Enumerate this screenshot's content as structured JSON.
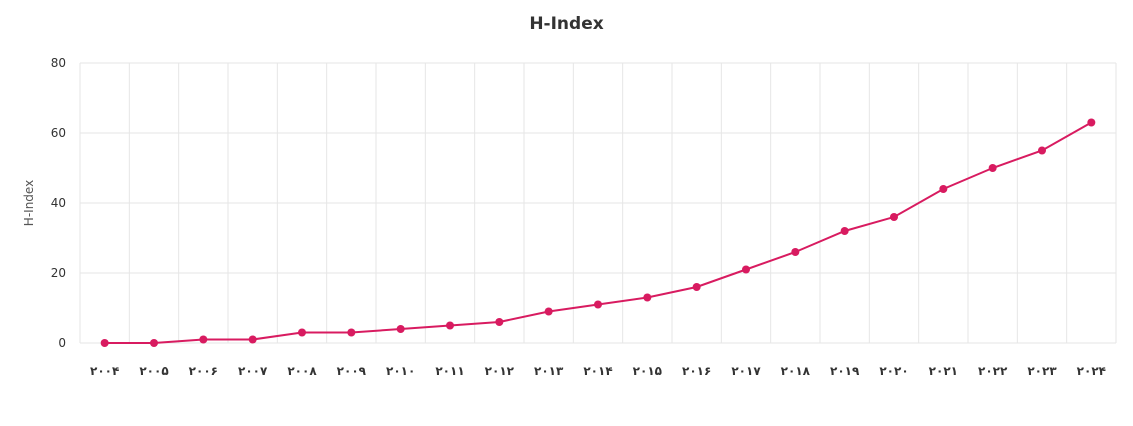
{
  "chart_data": {
    "type": "line",
    "title": "H-Index",
    "xlabel": "",
    "ylabel": "H-Index",
    "categories": [
      "۲۰۰۴",
      "۲۰۰۵",
      "۲۰۰۶",
      "۲۰۰۷",
      "۲۰۰۸",
      "۲۰۰۹",
      "۲۰۱۰",
      "۲۰۱۱",
      "۲۰۱۲",
      "۲۰۱۳",
      "۲۰۱۴",
      "۲۰۱۵",
      "۲۰۱۶",
      "۲۰۱۷",
      "۲۰۱۸",
      "۲۰۱۹",
      "۲۰۲۰",
      "۲۰۲۱",
      "۲۰۲۲",
      "۲۰۲۳",
      "۲۰۲۴"
    ],
    "series": [
      {
        "values": [
          0,
          0,
          1,
          1,
          3,
          3,
          4,
          5,
          6,
          9,
          11,
          13,
          16,
          21,
          26,
          32,
          36,
          44,
          50,
          55,
          63
        ]
      }
    ],
    "ylim": [
      0,
      80
    ],
    "yticks": [
      "0",
      "20",
      "40",
      "60",
      "80"
    ],
    "grid": true,
    "colors": {
      "line": "#d81b60",
      "grid": "#e6e6e6",
      "tick_text": "#333333"
    }
  }
}
